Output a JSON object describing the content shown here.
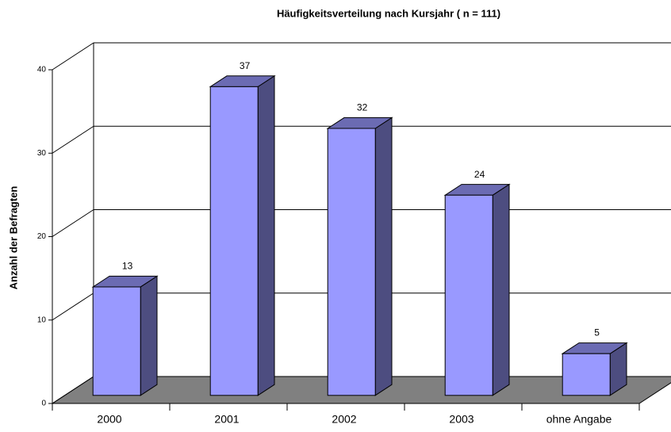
{
  "chart_data": {
    "type": "bar3d",
    "title": "Häufigkeitsverteilung nach Kursjahr ( n = 111)",
    "y_label": "Anzahl der Befragten",
    "categories": [
      "2000",
      "2001",
      "2002",
      "2003",
      "ohne Angabe"
    ],
    "values": [
      13,
      37,
      32,
      24,
      5
    ],
    "color": "#9999ff",
    "ylim": [
      0,
      40
    ],
    "yticks": [
      0,
      10,
      20,
      30,
      40
    ],
    "grid": true
  }
}
